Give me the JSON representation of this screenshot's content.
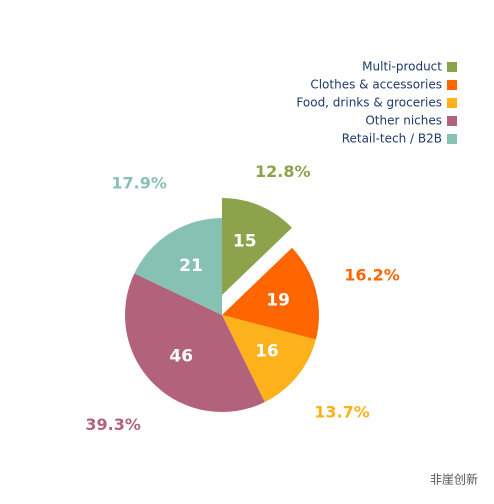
{
  "chart_data": {
    "type": "pie",
    "categories": [
      "Multi-product",
      "Clothes & accessories",
      "Food, drinks & groceries",
      "Other niches",
      "Retail-tech / B2B"
    ],
    "values": [
      15,
      19,
      16,
      46,
      21
    ],
    "percent_labels": [
      "12.8%",
      "16.2%",
      "13.7%",
      "39.3%",
      "17.9%"
    ],
    "colors": [
      "#8ca34c",
      "#ff6600",
      "#fdb21c",
      "#b3627b",
      "#87c1b4"
    ],
    "legend": "upper right"
  },
  "watermark": "非崖创新"
}
